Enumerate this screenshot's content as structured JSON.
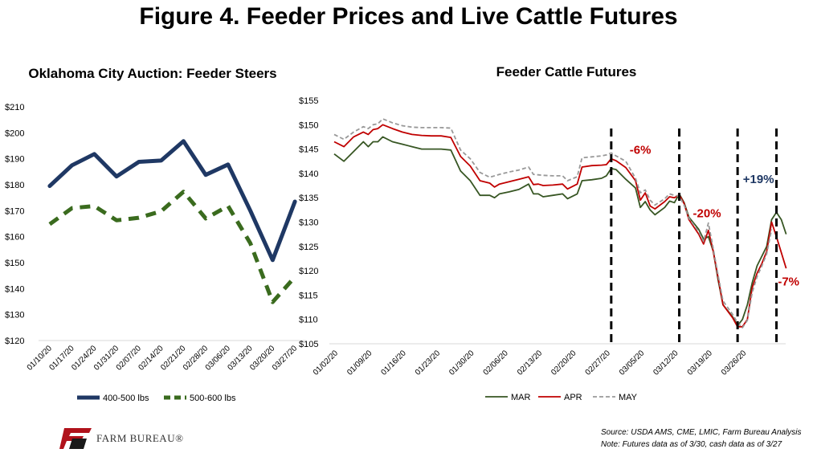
{
  "title": "Figure 4. Feeder Prices and Live Cattle Futures",
  "logo_text": "FARM BUREAU®",
  "source_line1": "Source:  USDA AMS, CME, LMIC, Farm Bureau Analysis",
  "source_line2": "Note: Futures data as of 3/30, cash data as of 3/27",
  "colors": {
    "navy": "#1F3864",
    "green": "#375623",
    "dark_green": "#3A6B1E",
    "red": "#C00000",
    "gray": "#999999",
    "label_navy": "#1F3864",
    "logo_red": "#B0121B"
  },
  "chart_data": [
    {
      "type": "line",
      "title": "Oklahoma City Auction: Feeder Steers",
      "categories": [
        "01/10/20",
        "01/17/20",
        "01/24/20",
        "01/31/20",
        "02/07/20",
        "02/14/20",
        "02/21/20",
        "02/28/20",
        "03/06/20",
        "03/13/20",
        "03/20/20",
        "03/27/20"
      ],
      "ylim": [
        120,
        210
      ],
      "y_ticks": [
        "$120",
        "$130",
        "$140",
        "$150",
        "$160",
        "$170",
        "$180",
        "$190",
        "$200",
        "$210"
      ],
      "series": [
        {
          "name": "400-500 lbs",
          "style": "solid",
          "values": [
            179.5,
            187.5,
            191.8,
            183.2,
            188.8,
            189.3,
            196.8,
            183.8,
            187.8,
            170.0,
            151.0,
            173.5
          ]
        },
        {
          "name": "500-600 lbs",
          "style": "dashed",
          "values": [
            164.8,
            171.0,
            171.8,
            166.3,
            167.3,
            169.8,
            177.3,
            167.0,
            171.8,
            157.5,
            134.8,
            144.5
          ]
        }
      ],
      "legend_position": "bottom"
    },
    {
      "type": "line",
      "title": "Feeder Cattle Futures",
      "x_labels": [
        "01/02/20",
        "01/09/20",
        "01/16/20",
        "01/23/20",
        "01/30/20",
        "02/06/20",
        "02/13/20",
        "02/20/20",
        "02/27/20",
        "03/05/20",
        "03/12/20",
        "03/19/20",
        "03/26/20"
      ],
      "ylim": [
        105,
        155
      ],
      "y_ticks": [
        "$105",
        "$110",
        "$115",
        "$120",
        "$125",
        "$130",
        "$135",
        "$140",
        "$145",
        "$150",
        "$155"
      ],
      "x_range": [
        0,
        90
      ],
      "x_start_date": "01/02/20",
      "series": [
        {
          "name": "MAR",
          "style": "solid",
          "points": [
            [
              0,
              144
            ],
            [
              2,
              142.5
            ],
            [
              4,
              144.5
            ],
            [
              6,
              146.5
            ],
            [
              7,
              145.5
            ],
            [
              8,
              146.5
            ],
            [
              9,
              146.5
            ],
            [
              10,
              147.5
            ],
            [
              12,
              146.5
            ],
            [
              14,
              146
            ],
            [
              16,
              145.5
            ],
            [
              18,
              145
            ],
            [
              20,
              145
            ],
            [
              22,
              145
            ],
            [
              24,
              144.8
            ],
            [
              26,
              140.5
            ],
            [
              28,
              138.5
            ],
            [
              30,
              135.5
            ],
            [
              32,
              135.5
            ],
            [
              33,
              135
            ],
            [
              34,
              135.8
            ],
            [
              36,
              136.2
            ],
            [
              38,
              136.7
            ],
            [
              40,
              137.8
            ],
            [
              41,
              135.8
            ],
            [
              42,
              135.8
            ],
            [
              43,
              135.2
            ],
            [
              45,
              135.5
            ],
            [
              47,
              135.8
            ],
            [
              48,
              134.8
            ],
            [
              50,
              135.8
            ],
            [
              51,
              138.5
            ],
            [
              53,
              138.7
            ],
            [
              55,
              139
            ],
            [
              56,
              139.5
            ],
            [
              57,
              141
            ],
            [
              58,
              140.8
            ],
            [
              60,
              138.8
            ],
            [
              62,
              137
            ],
            [
              63,
              133
            ],
            [
              64,
              134.2
            ],
            [
              65,
              132.5
            ],
            [
              66,
              131.5
            ],
            [
              68,
              133
            ],
            [
              69,
              134.3
            ],
            [
              70,
              134
            ],
            [
              71,
              135.8
            ],
            [
              72,
              134
            ],
            [
              73,
              131
            ],
            [
              75,
              128.5
            ],
            [
              76,
              126.5
            ],
            [
              77,
              127
            ],
            [
              78,
              124
            ],
            [
              79,
              118
            ],
            [
              80,
              113
            ],
            [
              82,
              110.5
            ],
            [
              83,
              108.7
            ],
            [
              84,
              110
            ],
            [
              85,
              113
            ],
            [
              86,
              117.5
            ],
            [
              87,
              121
            ],
            [
              88,
              123
            ],
            [
              89,
              125
            ],
            [
              90,
              130.5
            ],
            [
              91,
              132
            ],
            [
              92,
              130.5
            ],
            [
              93,
              127.5
            ]
          ]
        },
        {
          "name": "APR",
          "style": "solid",
          "points": [
            [
              0,
              146.5
            ],
            [
              2,
              145.5
            ],
            [
              4,
              147.5
            ],
            [
              6,
              148.5
            ],
            [
              7,
              148
            ],
            [
              8,
              149
            ],
            [
              9,
              149.2
            ],
            [
              10,
              150
            ],
            [
              12,
              149.2
            ],
            [
              14,
              148.5
            ],
            [
              16,
              148
            ],
            [
              18,
              147.8
            ],
            [
              20,
              147.7
            ],
            [
              22,
              147.7
            ],
            [
              24,
              147.4
            ],
            [
              26,
              143.5
            ],
            [
              28,
              141.5
            ],
            [
              30,
              138.5
            ],
            [
              32,
              138
            ],
            [
              33,
              137.2
            ],
            [
              34,
              137.8
            ],
            [
              36,
              138.3
            ],
            [
              38,
              138.8
            ],
            [
              40,
              139.3
            ],
            [
              41,
              137.7
            ],
            [
              42,
              137.8
            ],
            [
              43,
              137.5
            ],
            [
              45,
              137.6
            ],
            [
              47,
              137.8
            ],
            [
              48,
              136.8
            ],
            [
              50,
              137.8
            ],
            [
              51,
              141.3
            ],
            [
              53,
              141.6
            ],
            [
              55,
              141.7
            ],
            [
              56,
              141.8
            ],
            [
              57,
              143
            ],
            [
              58,
              142.6
            ],
            [
              60,
              141.2
            ],
            [
              62,
              138.5
            ],
            [
              63,
              134.5
            ],
            [
              64,
              136
            ],
            [
              65,
              133.3
            ],
            [
              66,
              132.7
            ],
            [
              68,
              134.2
            ],
            [
              69,
              135.2
            ],
            [
              70,
              135
            ],
            [
              71,
              135.6
            ],
            [
              72,
              133.8
            ],
            [
              73,
              130.5
            ],
            [
              75,
              127.5
            ],
            [
              76,
              125.5
            ],
            [
              77,
              128.3
            ],
            [
              78,
              124
            ],
            [
              79,
              118.5
            ],
            [
              80,
              113
            ],
            [
              82,
              110.3
            ],
            [
              83,
              108.5
            ],
            [
              84,
              108.5
            ],
            [
              85,
              110
            ],
            [
              86,
              116.5
            ],
            [
              87,
              119.5
            ],
            [
              88,
              121.5
            ],
            [
              89,
              124
            ],
            [
              90,
              130
            ],
            [
              91,
              127
            ],
            [
              93,
              120.5
            ]
          ]
        },
        {
          "name": "MAY",
          "style": "dashed",
          "points": [
            [
              0,
              148
            ],
            [
              2,
              147
            ],
            [
              4,
              148.5
            ],
            [
              6,
              149.6
            ],
            [
              7,
              149.2
            ],
            [
              8,
              150
            ],
            [
              9,
              150.2
            ],
            [
              10,
              151.2
            ],
            [
              12,
              150.4
            ],
            [
              14,
              149.8
            ],
            [
              16,
              149.5
            ],
            [
              18,
              149.4
            ],
            [
              20,
              149.4
            ],
            [
              22,
              149.4
            ],
            [
              24,
              149.3
            ],
            [
              26,
              144.8
            ],
            [
              28,
              143
            ],
            [
              30,
              140.2
            ],
            [
              32,
              139.2
            ],
            [
              34,
              139.8
            ],
            [
              36,
              140.3
            ],
            [
              38,
              140.7
            ],
            [
              40,
              141.3
            ],
            [
              41,
              139.8
            ],
            [
              42,
              139.7
            ],
            [
              43,
              139.6
            ],
            [
              45,
              139.5
            ],
            [
              47,
              139.5
            ],
            [
              48,
              138.5
            ],
            [
              50,
              139.3
            ],
            [
              51,
              143.2
            ],
            [
              53,
              143.4
            ],
            [
              55,
              143.6
            ],
            [
              56,
              143.8
            ],
            [
              57,
              144.2
            ],
            [
              58,
              143.6
            ],
            [
              60,
              142.5
            ],
            [
              62,
              139
            ],
            [
              63,
              136
            ],
            [
              64,
              136.6
            ],
            [
              65,
              134.5
            ],
            [
              66,
              133.5
            ],
            [
              68,
              134.8
            ],
            [
              69,
              135.8
            ],
            [
              70,
              135.5
            ],
            [
              71,
              135.3
            ],
            [
              72,
              133.5
            ],
            [
              73,
              130.8
            ],
            [
              75,
              128
            ],
            [
              76,
              126
            ],
            [
              77,
              129.8
            ],
            [
              78,
              124.5
            ],
            [
              79,
              119
            ],
            [
              80,
              113.8
            ],
            [
              82,
              111
            ],
            [
              83,
              109.3
            ],
            [
              84,
              108.3
            ],
            [
              85,
              109.8
            ],
            [
              86,
              115.5
            ],
            [
              87,
              118.8
            ],
            [
              88,
              121
            ],
            [
              89,
              123.5
            ],
            [
              90,
              128.5
            ]
          ]
        }
      ],
      "vlines_x": [
        57,
        71,
        83,
        91
      ],
      "annotations": [
        {
          "text": "-6%",
          "color": "red",
          "x": 63,
          "y": 144
        },
        {
          "text": "-20%",
          "color": "red",
          "x": 76.7,
          "y": 131
        },
        {
          "text": "+19%",
          "color": "navy",
          "x": 87.3,
          "y": 138
        },
        {
          "text": "-7%",
          "color": "red",
          "x": 93.5,
          "y": 117
        }
      ],
      "legend_position": "bottom"
    }
  ]
}
